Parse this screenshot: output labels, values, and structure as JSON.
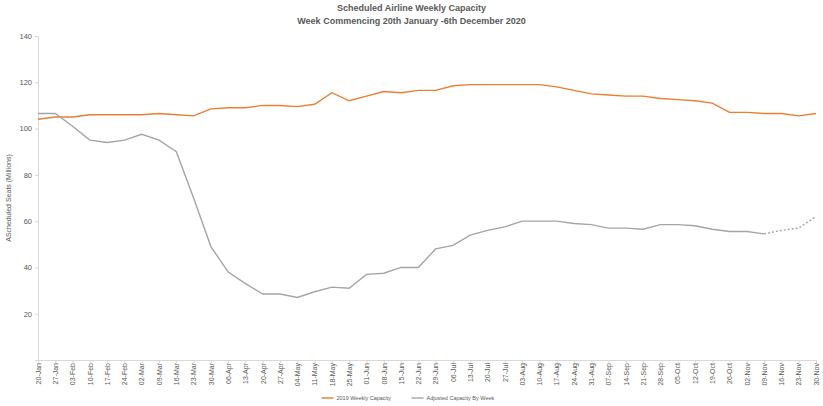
{
  "chart_data": {
    "type": "line",
    "title": "Scheduled Airline Weekly Capacity",
    "subtitle": "Week Commencing 20th January -6th December 2020",
    "y_label": "AScheduled Seats (Millions)",
    "categories": [
      "20-Jan",
      "27-Jan",
      "03-Feb",
      "10-Feb",
      "17-Feb",
      "24-Feb",
      "02-Mar",
      "09-Mar",
      "16-Mar",
      "23-Mar",
      "30-Mar",
      "06-Apr",
      "13-Apr",
      "20-Apr",
      "27-Apr",
      "04-May",
      "11-May",
      "18-May",
      "25-May",
      "01-Jun",
      "08-Jun",
      "15-Jun",
      "22-Jun",
      "29-Jun",
      "06-Jul",
      "13-Jul",
      "20-Jul",
      "27-Jul",
      "03-Aug",
      "10-Aug",
      "17-Aug",
      "24-Aug",
      "31-Aug",
      "07-Sep",
      "14-Sep",
      "21-Sep",
      "28-Sep",
      "05-Oct",
      "12-Oct",
      "19-Oct",
      "26-Oct",
      "02-Nov",
      "09-Nov",
      "16-Nov",
      "23-Nov",
      "30-Nov"
    ],
    "series": [
      {
        "name": "2019 Weekly Capacity",
        "color": "#ed7d31",
        "line_style": "solid",
        "values": [
          104,
          105,
          105,
          106,
          106,
          106,
          106,
          106.5,
          106,
          105.5,
          108.5,
          109,
          109,
          110,
          110,
          109.5,
          110.5,
          115.5,
          112,
          114,
          116,
          115.5,
          116.5,
          116.5,
          118.5,
          119,
          119,
          119,
          119,
          119,
          118,
          116.5,
          115,
          114.5,
          114,
          114,
          113,
          112.5,
          112,
          111,
          107,
          107,
          106.5,
          106.5,
          105.5,
          106.5
        ]
      },
      {
        "name": "Adjusted Capacity By Week",
        "color": "#a5a5a5",
        "line_style": "solid",
        "values": [
          106.5,
          106.5,
          101,
          95,
          94,
          95,
          97.5,
          95,
          90,
          70,
          49,
          38,
          33,
          28.5,
          28.5,
          27,
          29.5,
          31.5,
          31,
          37,
          37.5,
          40,
          40,
          48,
          49.5,
          54,
          56,
          57.5,
          60,
          60,
          60,
          59,
          58.5,
          57,
          57,
          56.5,
          58.5,
          58.5,
          58,
          56.5,
          55.5,
          55.5,
          54.5,
          null,
          null,
          null
        ]
      },
      {
        "color": "#a5a5a5",
        "line_style": "dotted",
        "values": [
          null,
          null,
          null,
          null,
          null,
          null,
          null,
          null,
          null,
          null,
          null,
          null,
          null,
          null,
          null,
          null,
          null,
          null,
          null,
          null,
          null,
          null,
          null,
          null,
          null,
          null,
          null,
          null,
          null,
          null,
          null,
          null,
          null,
          null,
          null,
          null,
          null,
          null,
          null,
          null,
          null,
          null,
          54.5,
          56,
          57,
          62
        ]
      }
    ],
    "ylim": [
      0,
      140
    ],
    "yticks": [
      20,
      40,
      60,
      80,
      100,
      120,
      140
    ],
    "grid": false,
    "legend": "bottom"
  }
}
